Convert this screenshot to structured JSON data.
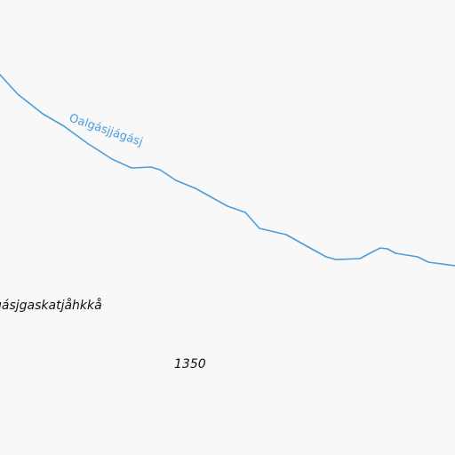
{
  "map": {
    "background_color": "#f8f8f8",
    "river": {
      "name": "Oalgásjjágásj",
      "color": "#4a9edc"
    },
    "place_label": "gásjgaskatjåhkkå",
    "elevation_label": "1350",
    "text_color": "#111111"
  }
}
